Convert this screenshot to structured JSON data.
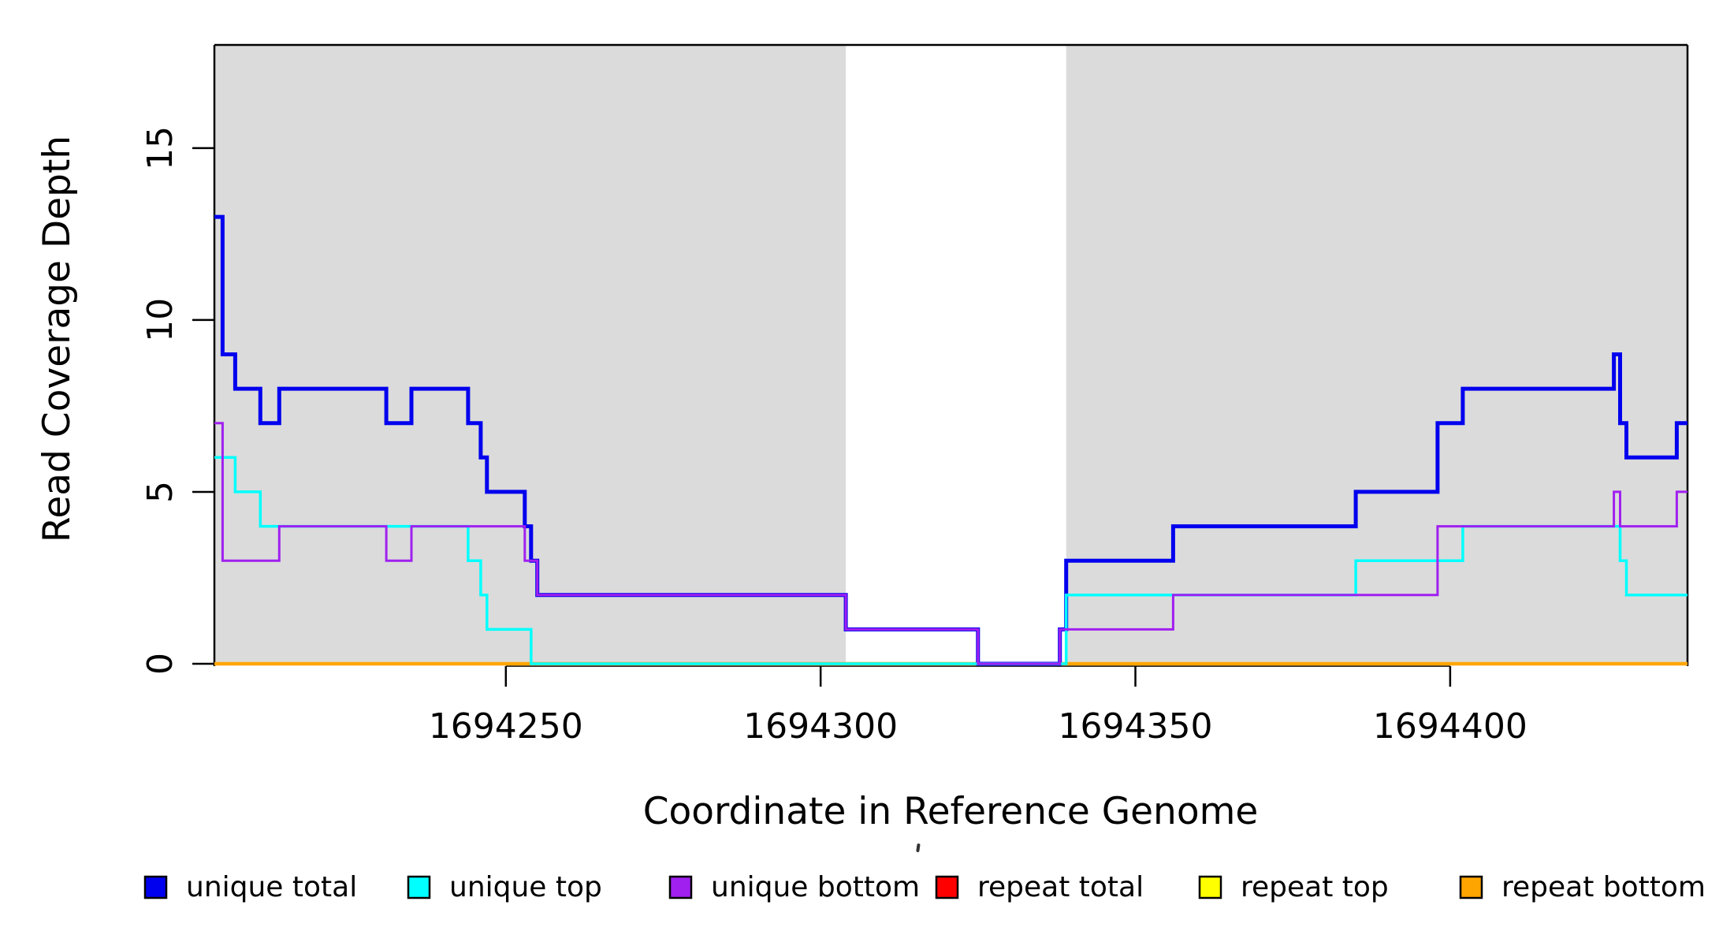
{
  "chart_data": {
    "type": "line",
    "subtype": "step-coverage-plot",
    "title": "",
    "xlabel": "Coordinate in Reference Genome",
    "ylabel": "Read Coverage Depth",
    "x_ticks": [
      1694250,
      1694300,
      1694350,
      1694400
    ],
    "x_tick_labels": [
      "1694250",
      "1694300",
      "1694350",
      "1694400"
    ],
    "y_ticks": [
      0,
      5,
      10,
      15
    ],
    "y_tick_labels": [
      "0",
      "5",
      "10",
      "15"
    ],
    "xlim": [
      1694203.7,
      1694437.7
    ],
    "ylim": [
      -0.25,
      18.0
    ],
    "grid": false,
    "legend_position": "bottom",
    "background_color": "#ffffff",
    "shade_color": "#dbdbdb",
    "axis_color": "#000000",
    "shaded_regions": [
      {
        "name": "left-unique-region",
        "x0": 1694203.7,
        "x1": 1694304
      },
      {
        "name": "right-unique-region",
        "x0": 1694339,
        "x1": 1694437.7
      }
    ],
    "series": [
      {
        "id": "repeat-total",
        "name": "repeat total",
        "color": "#FF0000",
        "lwd": 3.5,
        "steps": [
          [
            1694203.7,
            0
          ]
        ]
      },
      {
        "id": "repeat-top",
        "name": "repeat top",
        "color": "#FFFF00",
        "lwd": 3.5,
        "steps": [
          [
            1694203.7,
            0
          ]
        ]
      },
      {
        "id": "repeat-bottom",
        "name": "repeat bottom",
        "color": "#FFA500",
        "lwd": 4.5,
        "steps": [
          [
            1694203.7,
            0
          ]
        ]
      },
      {
        "id": "unique-total",
        "name": "unique total",
        "color": "#0000EE",
        "lwd": 5,
        "steps": [
          [
            1694203.7,
            13
          ],
          [
            1694205,
            9
          ],
          [
            1694207,
            8
          ],
          [
            1694211,
            7
          ],
          [
            1694214,
            8
          ],
          [
            1694231,
            7
          ],
          [
            1694235,
            8
          ],
          [
            1694244,
            7
          ],
          [
            1694246,
            6
          ],
          [
            1694247,
            5
          ],
          [
            1694253,
            4
          ],
          [
            1694254,
            3
          ],
          [
            1694255,
            2
          ],
          [
            1694304,
            1
          ],
          [
            1694325,
            0
          ],
          [
            1694338,
            1
          ],
          [
            1694339,
            3
          ],
          [
            1694356,
            4
          ],
          [
            1694385,
            5
          ],
          [
            1694398,
            7
          ],
          [
            1694402,
            8
          ],
          [
            1694426,
            9
          ],
          [
            1694427,
            7
          ],
          [
            1694428,
            6
          ],
          [
            1694436,
            7
          ]
        ]
      },
      {
        "id": "unique-top",
        "name": "unique top",
        "color": "#00FFFF",
        "lwd": 3.5,
        "steps": [
          [
            1694203.7,
            6
          ],
          [
            1694207,
            5
          ],
          [
            1694211,
            4
          ],
          [
            1694244,
            3
          ],
          [
            1694246,
            2
          ],
          [
            1694247,
            1
          ],
          [
            1694254,
            0
          ],
          [
            1694339,
            2
          ],
          [
            1694385,
            3
          ],
          [
            1694402,
            4
          ],
          [
            1694427,
            3
          ],
          [
            1694428,
            2
          ]
        ]
      },
      {
        "id": "unique-bottom",
        "name": "unique bottom",
        "color": "#A020F0",
        "lwd": 3,
        "steps": [
          [
            1694203.7,
            7
          ],
          [
            1694205,
            3
          ],
          [
            1694214,
            4
          ],
          [
            1694231,
            3
          ],
          [
            1694235,
            4
          ],
          [
            1694253,
            3
          ],
          [
            1694255,
            2
          ],
          [
            1694304,
            1
          ],
          [
            1694325,
            0
          ],
          [
            1694338,
            1
          ],
          [
            1694356,
            2
          ],
          [
            1694398,
            4
          ],
          [
            1694426,
            5
          ],
          [
            1694427,
            4
          ],
          [
            1694436,
            5
          ]
        ]
      }
    ],
    "legend": [
      {
        "label": "unique total",
        "color": "#0000EE"
      },
      {
        "label": "unique top",
        "color": "#00FFFF"
      },
      {
        "label": "unique bottom",
        "color": "#A020F0"
      },
      {
        "label": "repeat total",
        "color": "#FF0000"
      },
      {
        "label": "repeat top",
        "color": "#FFFF00"
      },
      {
        "label": "repeat bottom",
        "color": "#FFA500"
      }
    ]
  }
}
